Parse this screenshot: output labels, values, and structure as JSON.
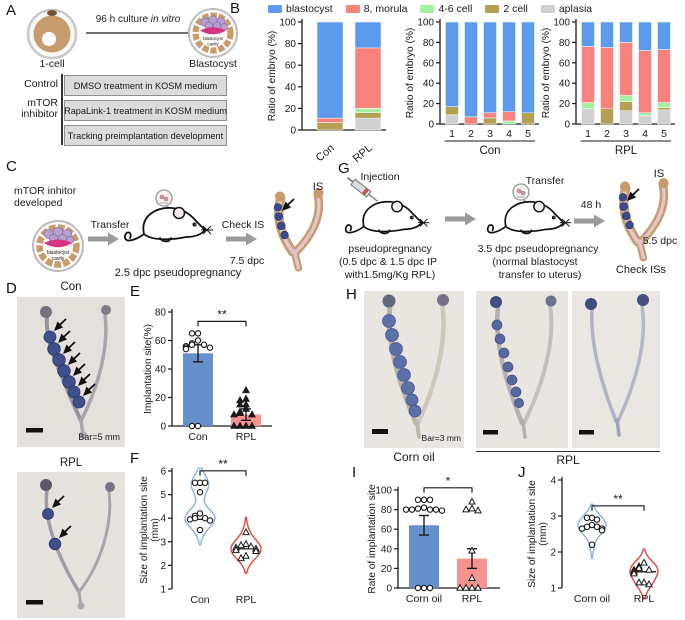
{
  "panels": {
    "A": {
      "label": "A",
      "one_cell": "1-cell",
      "arrow_pre": "96 h culture ",
      "arrow_italic": "in vitro",
      "blastocyst": "Blastocyst",
      "cavity_line1": "blastocyst",
      "cavity_line2": "cavity",
      "control": "Control",
      "mtor_line1": "mTOR",
      "mtor_line2": "inhibitor",
      "box1": "DMSO treatment  in KOSM medium",
      "box2": "RapaLink-1 treatment  in KOSM medium",
      "box3": "Tracking preimplantation development"
    },
    "B": {
      "label": "B",
      "legend": [
        {
          "label": "blastocyst",
          "color": "#5B9AEC"
        },
        {
          "label": "8, morula",
          "color": "#F8837C"
        },
        {
          "label": "4-6 cell",
          "color": "#A5EFA0"
        },
        {
          "label": "2 cell",
          "color": "#B3A055"
        },
        {
          "label": "aplasia",
          "color": "#D0D0D0"
        }
      ]
    },
    "C": {
      "label": "C",
      "dev_line1": "mTOR inhitor",
      "dev_line2": "developed",
      "cavity_line1": "blastocyst",
      "cavity_line2": "cavity",
      "transfer": "Transfer",
      "pseudo": "2.5 dpc pseudopregnancy",
      "check": "Check IS",
      "dpc": "7.5 dpc",
      "is": "IS"
    },
    "D": {
      "label": "D",
      "top_title": "Con",
      "bottom_title": "RPL",
      "scale": "Bar=5 mm"
    },
    "E": {
      "label": "E"
    },
    "F": {
      "label": "F"
    },
    "G": {
      "label": "G",
      "injection": "Injection",
      "pseudo1": "pseudopregnancy",
      "pseudo2": "(0.5 dpc & 1.5 dpc IP",
      "pseudo3": "with1.5mg/Kg RPL)",
      "transfer": "Transfer",
      "preg1": "3.5 dpc pseudopregnancy",
      "preg2": "(normal blastocyst",
      "preg3": "transfer to  uterus)",
      "h48": "48 h",
      "is": "IS",
      "dpc": "5.5 dpc",
      "check": "Check ISs"
    },
    "H": {
      "label": "H",
      "corn": "Corn oil",
      "rpl": "RPL",
      "scale": "Bar=3 mm"
    },
    "I": {
      "label": "I"
    },
    "J": {
      "label": "J"
    }
  },
  "charts": {
    "b1": {
      "type": "stacked",
      "ylabel": "Ratio of embryo (%)",
      "ymax": 100,
      "yticks": [
        0,
        20,
        40,
        60,
        80,
        100
      ],
      "categories": [
        "Con",
        "RPL"
      ],
      "stages": [
        "aplasia",
        "2 cell",
        "4-6 cell",
        "8, morula",
        "blastocyst"
      ],
      "colors": [
        "#D0D0D0",
        "#B3A055",
        "#A5EFA0",
        "#F8837C",
        "#5B9AEC"
      ],
      "values": [
        [
          0,
          7,
          0,
          4,
          89
        ],
        [
          11,
          5,
          4,
          56,
          24
        ]
      ]
    },
    "b2": {
      "type": "stacked",
      "ylabel": "Ratio of embryo (%)",
      "ymax": 100,
      "yticks": [
        0,
        20,
        40,
        60,
        80,
        100
      ],
      "categories": [
        "1",
        "2",
        "3",
        "4",
        "5"
      ],
      "group": "Con",
      "stages": [
        "aplasia",
        "2 cell",
        "4-6 cell",
        "8, morula",
        "blastocyst"
      ],
      "colors": [
        "#D0D0D0",
        "#B3A055",
        "#A5EFA0",
        "#F8837C",
        "#5B9AEC"
      ],
      "values": [
        [
          9,
          8,
          0,
          0,
          83
        ],
        [
          0,
          0,
          0,
          7,
          93
        ],
        [
          0,
          6,
          0,
          5,
          89
        ],
        [
          0,
          0,
          3,
          9,
          88
        ],
        [
          0,
          11,
          0,
          0,
          89
        ]
      ]
    },
    "b3": {
      "type": "stacked",
      "ylabel": "Ratio of embryo (%)",
      "ymax": 100,
      "yticks": [
        0,
        20,
        40,
        60,
        80,
        100
      ],
      "categories": [
        "1",
        "2",
        "3",
        "4",
        "5"
      ],
      "group": "RPL",
      "stages": [
        "aplasia",
        "2 cell",
        "4-6 cell",
        "8, morula",
        "blastocyst"
      ],
      "colors": [
        "#D0D0D0",
        "#B3A055",
        "#A5EFA0",
        "#F8837C",
        "#5B9AEC"
      ],
      "values": [
        [
          15,
          0,
          6,
          55,
          24
        ],
        [
          0,
          15,
          0,
          60,
          25
        ],
        [
          13,
          9,
          6,
          52,
          20
        ],
        [
          8,
          0,
          3,
          61,
          28
        ],
        [
          14,
          2,
          5,
          52,
          27
        ]
      ]
    },
    "e": {
      "type": "barScatter",
      "ylabel": "Implantation site(%)",
      "ymax": 80,
      "yticks": [
        0,
        20,
        40,
        60,
        80
      ],
      "categories": [
        "Con",
        "RPL"
      ],
      "bar_colors": [
        "#6590CB",
        "#F9938F"
      ],
      "values": [
        51,
        8
      ],
      "errors": [
        6,
        4
      ],
      "points": [
        [
          65,
          65,
          60,
          58,
          57,
          57,
          56,
          55,
          55,
          54,
          0,
          0
        ],
        [
          25,
          19,
          18,
          15,
          15,
          12,
          10,
          9,
          8,
          8,
          0,
          0,
          0,
          0
        ]
      ],
      "markers": [
        "circle",
        "tri-solid"
      ],
      "sig": "**"
    },
    "f": {
      "type": "violin",
      "ylabel_lines": [
        "Size of implantation site",
        "(mm)"
      ],
      "ymin": 1,
      "ymax": 6,
      "yticks": [
        1,
        2,
        3,
        4,
        5,
        6
      ],
      "categories": [
        "Con",
        "RPL"
      ],
      "colors": [
        "#85B4E8",
        "#E0463E"
      ],
      "medians": [
        3.95,
        2.7
      ],
      "points": [
        [
          5.5,
          5.5,
          5.5,
          5.1,
          4.2,
          4.1,
          4.0,
          4.0,
          3.95,
          3.9,
          3.5
        ],
        [
          3.4,
          2.9,
          2.85,
          2.8,
          2.75,
          2.7,
          2.65,
          2.6,
          2.4,
          2.3
        ]
      ],
      "markers": [
        "circle",
        "tri-open"
      ],
      "sig": "**"
    },
    "i": {
      "type": "barScatter",
      "ylabel": "Rate of implantation site",
      "ymax": 100,
      "yticks": [
        0,
        20,
        40,
        60,
        80,
        100
      ],
      "categories": [
        "Corn oil",
        "RPL"
      ],
      "bar_colors": [
        "#6590CB",
        "#F9938F"
      ],
      "values": [
        64,
        30
      ],
      "errors": [
        10,
        10
      ],
      "points": [
        [
          90,
          90,
          90,
          82,
          81,
          80,
          80,
          80,
          80,
          79,
          0,
          0,
          0
        ],
        [
          88,
          81,
          80,
          79,
          38,
          10,
          0,
          0,
          0,
          0
        ]
      ],
      "markers": [
        "circle",
        "tri-open"
      ],
      "sig": "*"
    },
    "j": {
      "type": "violin",
      "ylabel_lines": [
        "Size of implantation site",
        "(mm)"
      ],
      "ymin": 1,
      "ymax": 4,
      "yticks": [
        1,
        2,
        3,
        4
      ],
      "categories": [
        "Corn oil",
        "RPL"
      ],
      "colors": [
        "#85B4E8",
        "#E0463E"
      ],
      "medians": [
        2.7,
        1.45
      ],
      "points": [
        [
          2.95,
          2.95,
          2.9,
          2.75,
          2.7,
          2.7,
          2.65,
          2.65,
          2.6,
          2.2
        ],
        [
          1.7,
          1.6,
          1.55,
          1.5,
          1.5,
          1.45,
          1.4,
          1.15,
          1.15,
          1.1
        ]
      ],
      "markers": [
        "circle",
        "tri-open"
      ],
      "sig": "**"
    }
  }
}
